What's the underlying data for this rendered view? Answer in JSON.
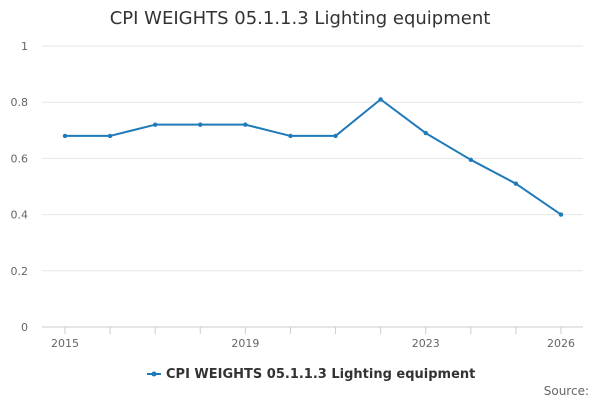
{
  "chart_data": {
    "type": "line",
    "title": "CPI WEIGHTS 05.1.1.3 Lighting equipment",
    "xlabel": "",
    "ylabel": "",
    "x": [
      2015,
      2016,
      2017,
      2018,
      2019,
      2020,
      2021,
      2022,
      2023,
      2024,
      2025,
      2026
    ],
    "x_tick_labels": [
      "2015",
      "2019",
      "2023",
      "2026"
    ],
    "y_tick_labels": [
      "0",
      "0.2",
      "0.4",
      "0.6",
      "0.8",
      "1"
    ],
    "ylim": [
      0,
      1
    ],
    "xlim": [
      2015,
      2026
    ],
    "grid": true,
    "legend_position": "bottom-center",
    "series": [
      {
        "name": "CPI WEIGHTS 05.1.1.3 Lighting equipment",
        "color": "#1f7ab8",
        "values": [
          0.68,
          0.68,
          0.72,
          0.72,
          0.72,
          0.68,
          0.68,
          0.81,
          0.69,
          0.595,
          0.51,
          0.4
        ]
      }
    ],
    "source_label": "Source:"
  }
}
